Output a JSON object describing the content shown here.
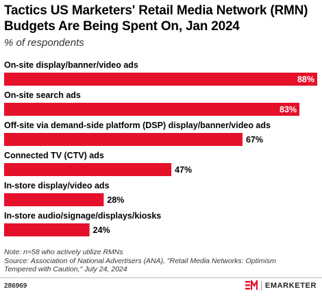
{
  "header": {
    "title": "Tactics US Marketers' Retail Media Network (RMN) Budgets Are Being Spent On, Jan 2024",
    "subtitle": "% of respondents"
  },
  "chart_data": {
    "type": "bar",
    "orientation": "horizontal",
    "categories": [
      "On-site display/banner/video ads",
      "On-site search ads",
      "Off-site via demand-side platform (DSP) display/banner/video ads",
      "Connected TV (CTV) ads",
      "In-store display/video ads",
      "In-store audio/signage/displays/kiosks"
    ],
    "values": [
      88,
      83,
      67,
      47,
      28,
      24
    ],
    "value_labels": [
      "88%",
      "83%",
      "67%",
      "47%",
      "28%",
      "24%"
    ],
    "xlim": [
      0,
      88
    ],
    "bar_color": "#e5112b",
    "grid": false
  },
  "footer": {
    "note": "Note: n=58 who actively utilize RMNs",
    "source": "Source: Association of National Advertisers (ANA), \"Retail Media Networks: Optimism Tempered with Caution,\" July 24, 2024",
    "chart_id": "286969",
    "brand": "EMARKETER",
    "logo_icon": "em-logo-icon",
    "brand_color": "#e5112b"
  }
}
